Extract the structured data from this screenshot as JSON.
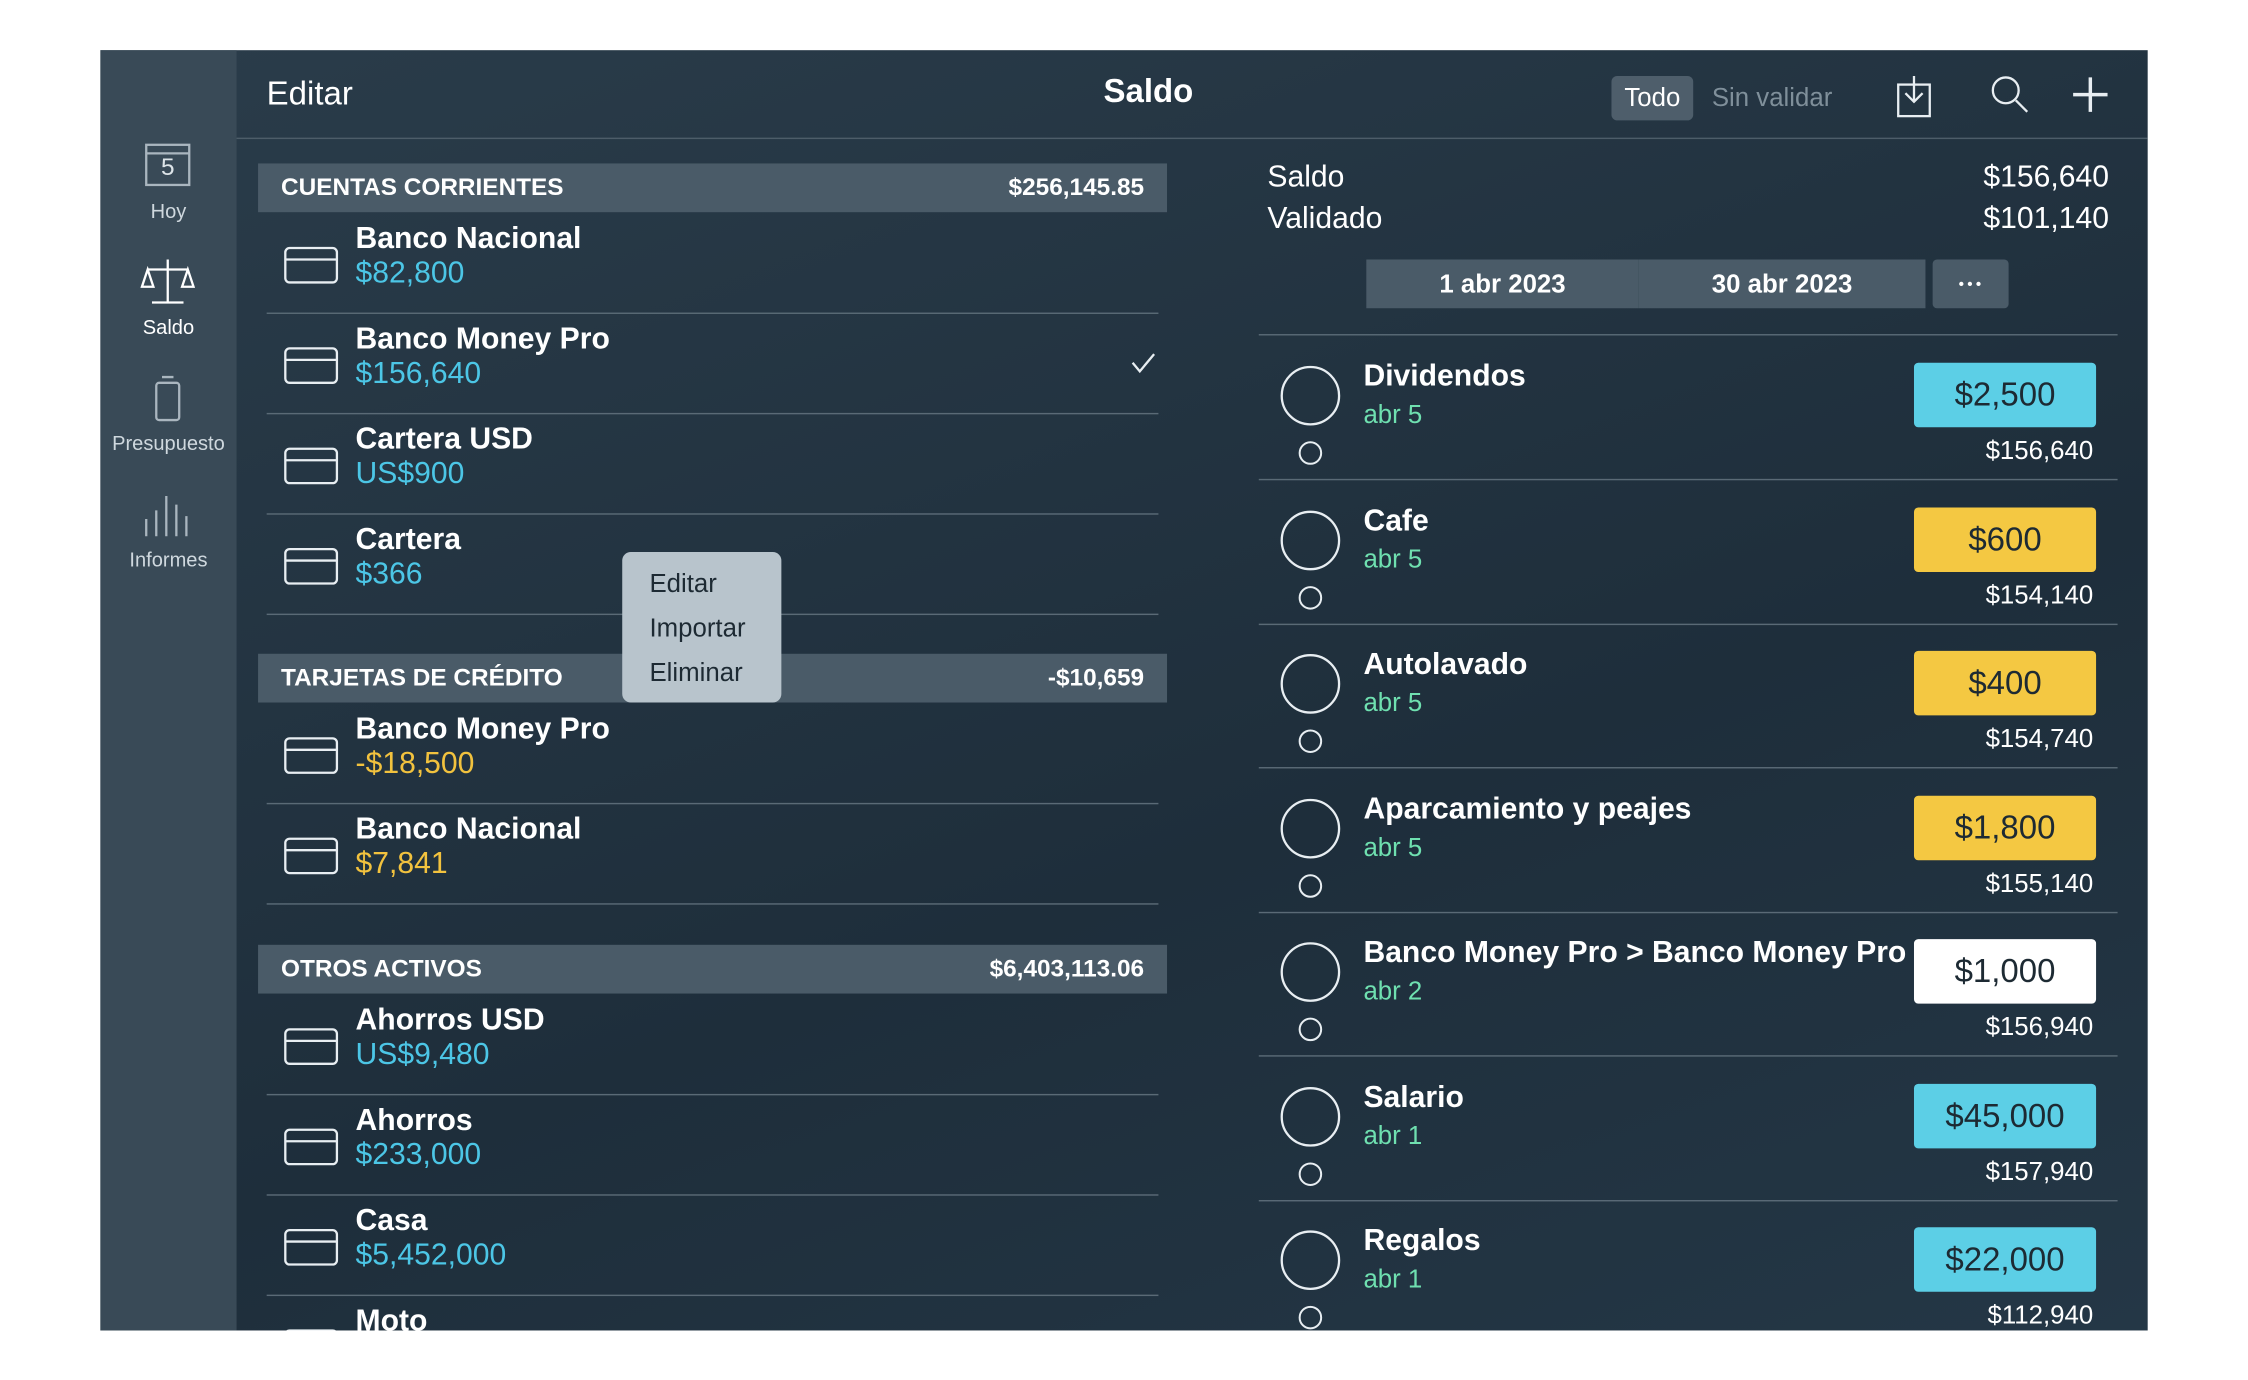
{
  "header": {
    "edit": "Editar",
    "title": "Saldo",
    "filters": [
      "Todo",
      "Sin validar"
    ]
  },
  "sidebar": [
    {
      "label": "Hoy",
      "day": "5"
    },
    {
      "label": "Saldo"
    },
    {
      "label": "Presupuesto"
    },
    {
      "label": "Informes"
    }
  ],
  "groups": [
    {
      "title": "CUENTAS CORRIENTES",
      "total": "$256,145.85",
      "accounts": [
        {
          "name": "Banco Nacional",
          "balance": "$82,800",
          "color": "#4cc6e6"
        },
        {
          "name": "Banco Money Pro",
          "balance": "$156,640",
          "color": "#4cc6e6"
        },
        {
          "name": "Cartera USD",
          "balance": "US$900",
          "color": "#4cc6e6"
        },
        {
          "name": "Cartera",
          "balance": "$366",
          "color": "#4cc6e6"
        }
      ]
    },
    {
      "title": "TARJETAS DE CRÉDITO",
      "total": "-$10,659",
      "accounts": [
        {
          "name": "Banco Money Pro",
          "balance": "-$18,500",
          "color": "#f2c23e"
        },
        {
          "name": "Banco Nacional",
          "balance": "$7,841",
          "color": "#f2c23e"
        }
      ]
    },
    {
      "title": "OTROS ACTIVOS",
      "total": "$6,403,113.06",
      "accounts": [
        {
          "name": "Ahorros USD",
          "balance": "US$9,480",
          "color": "#4cc6e6"
        },
        {
          "name": "Ahorros",
          "balance": "$233,000",
          "color": "#4cc6e6"
        },
        {
          "name": "Casa",
          "balance": "$5,452,000",
          "color": "#4cc6e6"
        },
        {
          "name": "Moto",
          "balance": "",
          "color": "#4cc6e6"
        }
      ]
    }
  ],
  "context_menu": [
    "Editar",
    "Importar",
    "Eliminar"
  ],
  "summary": {
    "balance_label": "Saldo",
    "balance": "$156,640",
    "validated_label": "Validado",
    "validated": "$101,140",
    "date_from": "1 abr 2023",
    "date_to": "30 abr 2023"
  },
  "transactions": [
    {
      "name": "Dividendos",
      "date": "abr 5",
      "amount": "$2,500",
      "color": "#5ccfe6",
      "balance": "$156,640"
    },
    {
      "name": "Cafe",
      "date": "abr 5",
      "amount": "$600",
      "color": "#f4c842",
      "balance": "$154,140"
    },
    {
      "name": "Autolavado",
      "date": "abr 5",
      "amount": "$400",
      "color": "#f4c842",
      "balance": "$154,740"
    },
    {
      "name": "Aparcamiento y peajes",
      "date": "abr 5",
      "amount": "$1,800",
      "color": "#f4c842",
      "balance": "$155,140"
    },
    {
      "name": "Banco Money Pro > Banco Money Pro",
      "date": "abr 2",
      "amount": "$1,000",
      "color": "#ffffff",
      "balance": "$156,940"
    },
    {
      "name": "Salario",
      "date": "abr 1",
      "amount": "$45,000",
      "color": "#5ccfe6",
      "balance": "$157,940"
    },
    {
      "name": "Regalos",
      "date": "abr 1",
      "amount": "$22,000",
      "color": "#5ccfe6",
      "balance": "$112,940"
    }
  ]
}
